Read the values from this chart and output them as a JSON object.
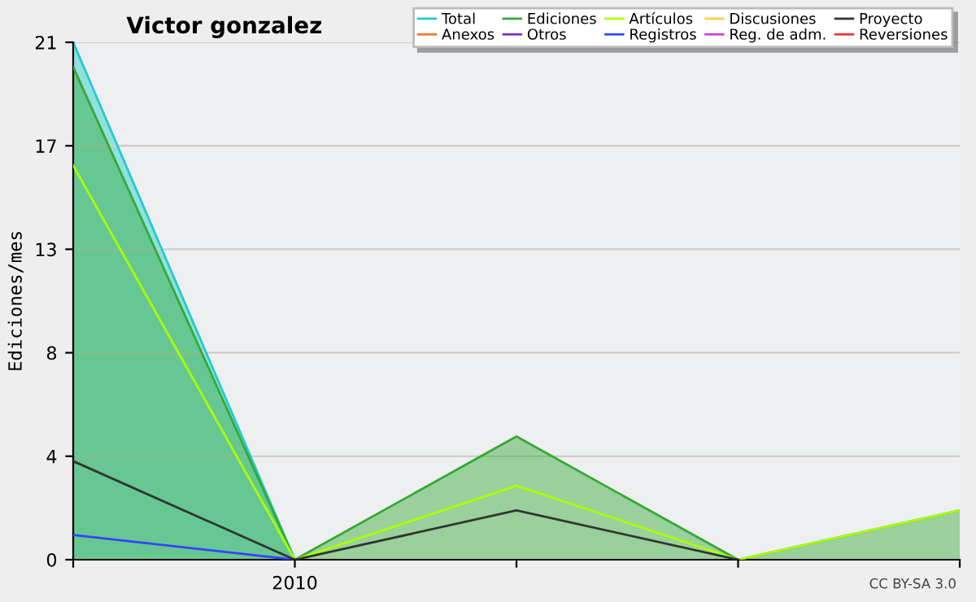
{
  "chart_data": {
    "type": "line",
    "title": "Victor gonzalez",
    "ylabel": "Ediciones/mes",
    "categories": [
      null,
      "2010",
      null,
      null,
      null
    ],
    "series": [
      {
        "name": "Total",
        "type": "area",
        "color": "#22cccc",
        "values": [
          21,
          0,
          null,
          null,
          null
        ]
      },
      {
        "name": "Anexos",
        "color": "#ee7733",
        "values": [
          null,
          null,
          null,
          null,
          null
        ]
      },
      {
        "name": "Ediciones",
        "type": "area",
        "color": "#33aa33",
        "values": [
          20,
          0,
          5,
          0,
          2
        ]
      },
      {
        "name": "Otros",
        "color": "#7733cc",
        "values": [
          null,
          null,
          null,
          null,
          null
        ]
      },
      {
        "name": "Artículos",
        "color": "#aaff00",
        "values": [
          16,
          0,
          3,
          0,
          2
        ]
      },
      {
        "name": "Registros",
        "color": "#3344ff",
        "values": [
          1,
          0,
          null,
          null,
          null
        ]
      },
      {
        "name": "Discusiones",
        "color": "#ffcc44",
        "values": [
          null,
          null,
          null,
          null,
          null
        ]
      },
      {
        "name": "Reg. de adm.",
        "color": "#cc44cc",
        "values": [
          null,
          null,
          null,
          null,
          null
        ]
      },
      {
        "name": "Proyecto",
        "color": "#333333",
        "values": [
          4,
          0,
          2,
          0,
          null
        ]
      },
      {
        "name": "Reversiones",
        "color": "#ee3333",
        "values": [
          null,
          null,
          null,
          null,
          null
        ]
      }
    ],
    "ylim": [
      0,
      21
    ],
    "yticks": [
      0,
      {
        "value": 4.2,
        "label": "4"
      },
      {
        "value": 8.4,
        "label": "8"
      },
      {
        "value": 12.6,
        "label": "13"
      },
      {
        "value": 16.8,
        "label": "17"
      },
      21
    ],
    "grid": "y",
    "legend": "top right",
    "annotations": [
      "CC BY-SA 3.0"
    ]
  }
}
